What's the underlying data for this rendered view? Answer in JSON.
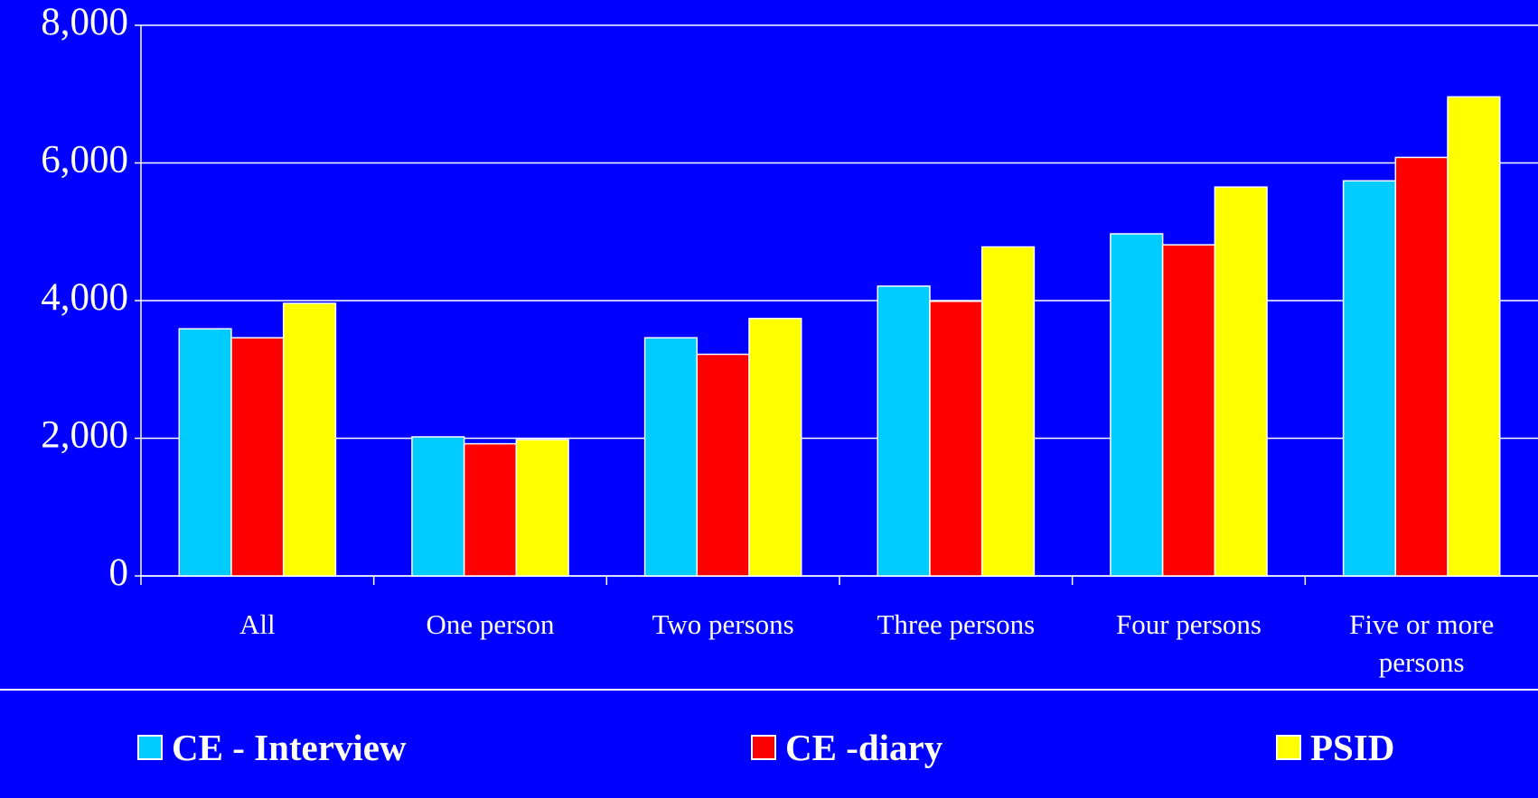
{
  "chart_data": {
    "type": "bar",
    "categories": [
      "All",
      "One person",
      "Two persons",
      "Three persons",
      "Four persons",
      "Five or more persons"
    ],
    "series": [
      {
        "name": "CE - Interview",
        "color": "#00ccff",
        "values": [
          3590,
          2020,
          3460,
          4210,
          4970,
          5740
        ]
      },
      {
        "name": "CE -diary",
        "color": "#ff0000",
        "values": [
          3460,
          1920,
          3220,
          3990,
          4810,
          6080
        ]
      },
      {
        "name": "PSID",
        "color": "#ffff00",
        "values": [
          3960,
          1980,
          3740,
          4780,
          5650,
          6960
        ]
      }
    ],
    "ylim": [
      0,
      8000
    ],
    "yticks": [
      0,
      {
        "value": 2000,
        "label": "2,000"
      },
      {
        "value": 4000,
        "label": "4,000"
      },
      {
        "value": 6000,
        "label": "6,000"
      },
      {
        "value": 8000,
        "label": "8,000"
      }
    ],
    "grid": true,
    "legend": "bottom"
  }
}
